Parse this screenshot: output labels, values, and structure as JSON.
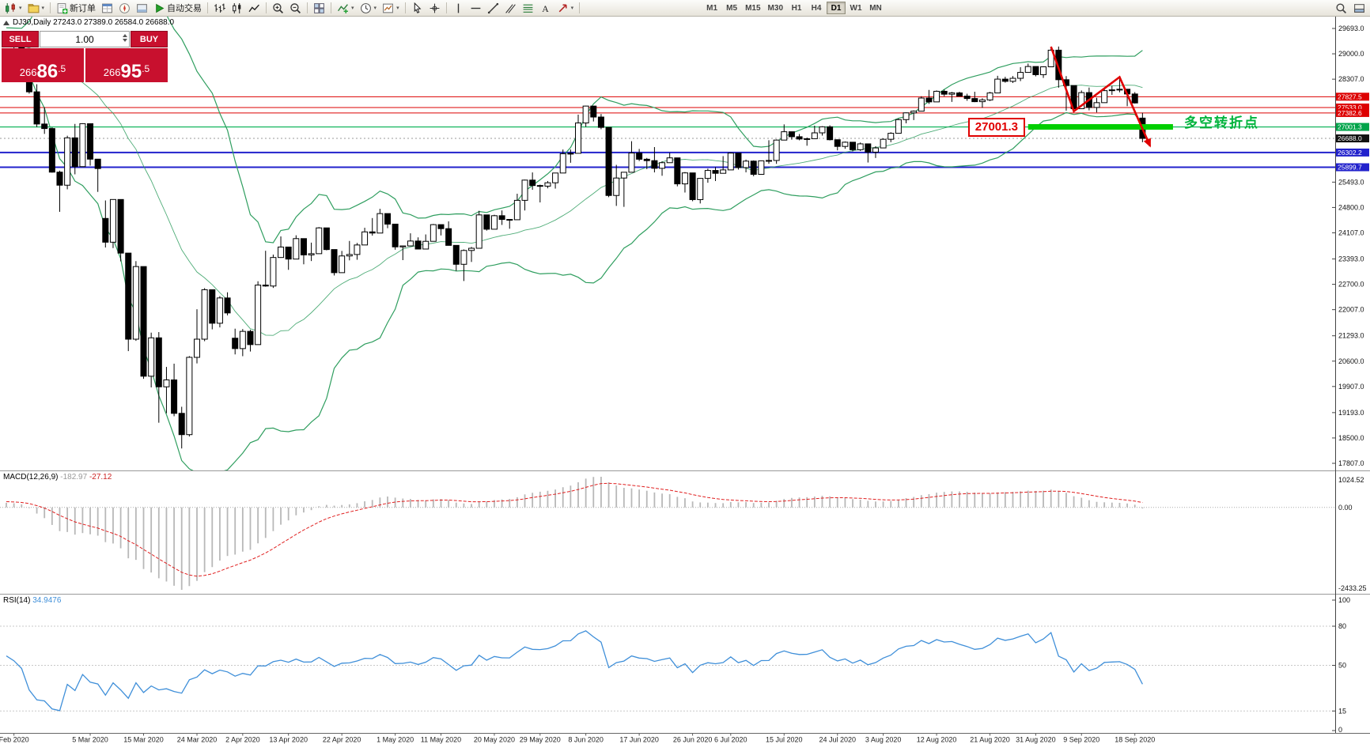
{
  "toolbar": {
    "items": [
      {
        "name": "new-chart",
        "dropdown": true
      },
      {
        "name": "profiles",
        "dropdown": true
      },
      {
        "sep": true
      },
      {
        "name": "new-order",
        "label": "新订单"
      },
      {
        "name": "market-watch"
      },
      {
        "name": "navigator"
      },
      {
        "name": "terminal"
      },
      {
        "name": "autotrading",
        "label": "自动交易"
      },
      {
        "sep": true
      },
      {
        "name": "bars-chart"
      },
      {
        "name": "candlestick-chart"
      },
      {
        "name": "line-chart"
      },
      {
        "sep": true
      },
      {
        "name": "zoom-in"
      },
      {
        "name": "zoom-out"
      },
      {
        "sep": true
      },
      {
        "name": "tile-windows"
      },
      {
        "sep": true
      },
      {
        "name": "indicators",
        "dropdown": true
      },
      {
        "name": "periods",
        "dropdown": true
      },
      {
        "name": "templates",
        "dropdown": true
      },
      {
        "sep": true
      },
      {
        "name": "cursor"
      },
      {
        "name": "crosshair"
      },
      {
        "sep": true
      },
      {
        "name": "vertical-line"
      },
      {
        "name": "horizontal-line"
      },
      {
        "name": "trendline"
      },
      {
        "name": "equidistant-channel"
      },
      {
        "name": "fibonacci"
      },
      {
        "name": "text-label"
      },
      {
        "name": "arrows",
        "dropdown": true
      },
      {
        "sep": true
      },
      {
        "gap": true
      }
    ],
    "timeframes": [
      {
        "label": "M1"
      },
      {
        "label": "M5"
      },
      {
        "label": "M15"
      },
      {
        "label": "M30"
      },
      {
        "label": "H1"
      },
      {
        "label": "H4"
      },
      {
        "label": "D1",
        "active": true
      },
      {
        "label": "W1"
      },
      {
        "label": "MN"
      }
    ],
    "right_items": [
      {
        "name": "search"
      },
      {
        "name": "toolbox-toggle"
      }
    ]
  },
  "trade_panel": {
    "sell_label": "SELL",
    "buy_label": "BUY",
    "volume": "1.00",
    "sell_price": "26686.5",
    "buy_price": "26695.5",
    "panel_color": "#c8102e"
  },
  "chart_data": {
    "type": "candlestick",
    "symbol": "DJ30",
    "timeframe": "Daily",
    "title_line": "DJ30,Daily 27243.0 27389.0 26584.0 26688.0",
    "ohlc_current": {
      "open": "27243.0",
      "high": "27389.0",
      "low": "26584.0",
      "close": "26688.0"
    },
    "current_price": 26688.0,
    "y_axis": {
      "min": 17807.0,
      "max": 29693.0,
      "labels": [
        "29693.0",
        "29000.0",
        "28307.0",
        "25493.0",
        "24800.0",
        "24107.0",
        "23393.0",
        "22700.0",
        "22007.0",
        "21293.0",
        "20600.0",
        "19907.0",
        "19193.0",
        "18500.0",
        "17807.0"
      ]
    },
    "x_ticks": [
      {
        "i": 1,
        "label": "Feb 2020"
      },
      {
        "i": 11,
        "label": "5 Mar 2020"
      },
      {
        "i": 18,
        "label": "15 Mar 2020"
      },
      {
        "i": 25,
        "label": "24 Mar 2020"
      },
      {
        "i": 31,
        "label": "2 Apr 2020"
      },
      {
        "i": 37,
        "label": "13 Apr 2020"
      },
      {
        "i": 44,
        "label": "22 Apr 2020"
      },
      {
        "i": 51,
        "label": "1 May 2020"
      },
      {
        "i": 57,
        "label": "11 May 2020"
      },
      {
        "i": 64,
        "label": "20 May 2020"
      },
      {
        "i": 70,
        "label": "29 May 2020"
      },
      {
        "i": 76,
        "label": "8 Jun 2020"
      },
      {
        "i": 83,
        "label": "17 Jun 2020"
      },
      {
        "i": 90,
        "label": "26 Jun 2020"
      },
      {
        "i": 95,
        "label": "6 Jul 2020"
      },
      {
        "i": 102,
        "label": "15 Jul 2020"
      },
      {
        "i": 109,
        "label": "24 Jul 2020"
      },
      {
        "i": 115,
        "label": "3 Aug 2020"
      },
      {
        "i": 122,
        "label": "12 Aug 2020"
      },
      {
        "i": 129,
        "label": "21 Aug 2020"
      },
      {
        "i": 135,
        "label": "31 Aug 2020"
      },
      {
        "i": 141,
        "label": "9 Sep 2020"
      },
      {
        "i": 148,
        "label": "18 Sep 2020"
      }
    ],
    "levels": [
      {
        "price": 27827.5,
        "label": "27827.5",
        "color": "#dd0000",
        "width": 1,
        "style": "solid",
        "label_bg": "#dd0000"
      },
      {
        "price": 27533.0,
        "label": "27533.0",
        "color": "#dd0000",
        "width": 1,
        "style": "solid",
        "label_bg": "#dd0000"
      },
      {
        "price": 27382.6,
        "label": "27382.6",
        "color": "#dd0000",
        "width": 1,
        "style": "solid",
        "label_bg": "#dd0000"
      },
      {
        "price": 27001.3,
        "label": "27001.3",
        "color": "#00b050",
        "width": 1.2,
        "style": "solid",
        "label_bg": "#00a44a"
      },
      {
        "price": 26688.0,
        "label": "26688.0",
        "color": "#9a9a9a",
        "width": 1,
        "style": "dotted",
        "label_bg": "#111111"
      },
      {
        "price": 26302.2,
        "label": "26302.2",
        "color": "#2121cc",
        "width": 2,
        "style": "solid",
        "label_bg": "#2121cc"
      },
      {
        "price": 25899.7,
        "label": "25899.7",
        "color": "#2121cc",
        "width": 2,
        "style": "solid",
        "label_bg": "#2121cc"
      }
    ],
    "style": {
      "candle_up_fill": "#ffffff",
      "candle_down_fill": "#000000",
      "candle_stroke": "#000000",
      "macd_bars": "#b8b8b8",
      "macd_signal": "#e02020",
      "rsi_line": "#3f8fd9"
    },
    "bollinger": {
      "period": 20,
      "deviations": 2,
      "color": "#2f9e5f"
    },
    "indicators": {
      "macd": {
        "label": "MACD(12,26,9)",
        "value_main": "-182.97",
        "value_signal": "-27.12",
        "axis": [
          "1024.52",
          "0.00",
          "-2433.25"
        ]
      },
      "rsi": {
        "label": "RSI(14)",
        "value": "34.9476",
        "axis": [
          "100",
          "80",
          "50",
          "15",
          "0"
        ],
        "levels": [
          80,
          50,
          15
        ]
      }
    },
    "annotations": {
      "callout_price": "27001.3",
      "note": "多空转折点",
      "zigzag": [
        {
          "i": 137,
          "price": 29193
        },
        {
          "i": 140,
          "price": 27430
        },
        {
          "i": 146,
          "price": 28364
        },
        {
          "i": 150,
          "price": 26480
        }
      ],
      "support_bar": {
        "price": 27001.3,
        "from_i": 134,
        "to_i": 153
      },
      "colors": {
        "zigzag": "#e00000",
        "support": "#00cf00",
        "note": "#00b33c",
        "callout": "#e00000"
      }
    },
    "seed_closes": [
      28132,
      28239,
      28376,
      28455,
      28515,
      28621,
      28538,
      28462,
      28645,
      28868,
      28745,
      28798,
      28956,
      29001,
      28855,
      28634,
      28703,
      28823,
      28939,
      29121,
      29196,
      29348,
      29303,
      28989,
      28722,
      28734,
      28807,
      29276,
      29551,
      29379,
      29398,
      29428,
      29551,
      29398,
      29232,
      29348,
      29219,
      29102,
      29348,
      29220
    ],
    "candles": [
      [
        29320,
        29409,
        29276,
        29348
      ],
      [
        29348,
        29368,
        29002,
        29220
      ],
      [
        29220,
        29227,
        28892,
        28992
      ],
      [
        28402,
        28402,
        27912,
        27961
      ],
      [
        27961,
        28169,
        26998,
        27081
      ],
      [
        27081,
        27542,
        26811,
        26957
      ],
      [
        26957,
        26990,
        25752,
        25766
      ],
      [
        25766,
        25806,
        24681,
        25409
      ],
      [
        25409,
        26761,
        25296,
        26703
      ],
      [
        26703,
        27084,
        25706,
        25917
      ],
      [
        25917,
        27102,
        25916,
        27090
      ],
      [
        27090,
        27090,
        25943,
        26121
      ],
      [
        26121,
        26121,
        25226,
        25864
      ],
      [
        24500,
        24992,
        23706,
        23851
      ],
      [
        23851,
        25020,
        23690,
        25018
      ],
      [
        25018,
        25020,
        23328,
        23553
      ],
      [
        23553,
        23553,
        20874,
        21200
      ],
      [
        21200,
        23333,
        21154,
        23185
      ],
      [
        23185,
        23185,
        20116,
        20188
      ],
      [
        20188,
        21379,
        19882,
        21237
      ],
      [
        21237,
        21394,
        18917,
        19898
      ],
      [
        19898,
        20442,
        19177,
        20087
      ],
      [
        20087,
        20531,
        19094,
        19173
      ],
      [
        19173,
        19353,
        18213,
        18591
      ],
      [
        18591,
        20737,
        18540,
        20704
      ],
      [
        20704,
        22019,
        20538,
        21200
      ],
      [
        21200,
        22595,
        21145,
        22552
      ],
      [
        22552,
        22552,
        21469,
        21636
      ],
      [
        21636,
        22378,
        21522,
        22327
      ],
      [
        22327,
        22482,
        21852,
        21917
      ],
      [
        21227,
        21487,
        20784,
        20943
      ],
      [
        20943,
        21477,
        20735,
        21413
      ],
      [
        21413,
        21457,
        20863,
        21052
      ],
      [
        21052,
        22783,
        21052,
        22679
      ],
      [
        22679,
        23617,
        22634,
        22653
      ],
      [
        22653,
        23513,
        22601,
        23433
      ],
      [
        23433,
        24009,
        23423,
        23719
      ],
      [
        23719,
        23719,
        23096,
        23390
      ],
      [
        23390,
        24040,
        23390,
        23949
      ],
      [
        23949,
        23949,
        23247,
        23504
      ],
      [
        23504,
        23839,
        23336,
        23537
      ],
      [
        23537,
        24264,
        23537,
        24242
      ],
      [
        24242,
        24242,
        23628,
        23650
      ],
      [
        23650,
        23650,
        22941,
        23018
      ],
      [
        23018,
        23613,
        23018,
        23475
      ],
      [
        23475,
        23885,
        23355,
        23515
      ],
      [
        23515,
        23831,
        23371,
        23775
      ],
      [
        23775,
        24246,
        23775,
        24133
      ],
      [
        24133,
        24511,
        24032,
        24101
      ],
      [
        24101,
        24764,
        24101,
        24633
      ],
      [
        24633,
        24633,
        24234,
        24345
      ],
      [
        24345,
        24345,
        23645,
        23723
      ],
      [
        23723,
        23759,
        23361,
        23749
      ],
      [
        23749,
        24094,
        23749,
        23883
      ],
      [
        23883,
        23983,
        23664,
        23664
      ],
      [
        23664,
        24063,
        23664,
        23875
      ],
      [
        23875,
        24349,
        23875,
        24331
      ],
      [
        24331,
        24331,
        24036,
        24221
      ],
      [
        24221,
        24421,
        23764,
        23764
      ],
      [
        23764,
        23764,
        23067,
        23247
      ],
      [
        23247,
        23653,
        22790,
        23625
      ],
      [
        23625,
        23722,
        23311,
        23685
      ],
      [
        23685,
        24709,
        23685,
        24597
      ],
      [
        24597,
        24597,
        24168,
        24206
      ],
      [
        24206,
        24601,
        24206,
        24575
      ],
      [
        24575,
        24719,
        24323,
        24474
      ],
      [
        24474,
        24482,
        24219,
        24465
      ],
      [
        24465,
        25176,
        24465,
        24995
      ],
      [
        24995,
        25560,
        24718,
        25548
      ],
      [
        25548,
        25758,
        25283,
        25400
      ],
      [
        25400,
        25424,
        24938,
        25383
      ],
      [
        25383,
        25523,
        25324,
        25475
      ],
      [
        25475,
        25743,
        25316,
        25742
      ],
      [
        25742,
        26384,
        25742,
        26269
      ],
      [
        26269,
        26385,
        26022,
        26281
      ],
      [
        26281,
        27338,
        26281,
        27110
      ],
      [
        27110,
        27580,
        27003,
        27572
      ],
      [
        27572,
        27572,
        27151,
        27272
      ],
      [
        27272,
        27355,
        26938,
        26989
      ],
      [
        26989,
        26989,
        25082,
        25128
      ],
      [
        25128,
        25965,
        24843,
        25605
      ],
      [
        25605,
        25763,
        24817,
        25763
      ],
      [
        25763,
        26611,
        25763,
        26289
      ],
      [
        26289,
        26400,
        26068,
        26119
      ],
      [
        26119,
        26154,
        25848,
        26080
      ],
      [
        26080,
        26451,
        25759,
        25871
      ],
      [
        25871,
        26059,
        25667,
        26024
      ],
      [
        26024,
        26298,
        26024,
        26156
      ],
      [
        26156,
        26156,
        25378,
        25445
      ],
      [
        25445,
        25769,
        25209,
        25745
      ],
      [
        25745,
        25745,
        24971,
        25015
      ],
      [
        25015,
        25601,
        24910,
        25595
      ],
      [
        25595,
        25860,
        25476,
        25812
      ],
      [
        25812,
        25905,
        25523,
        25734
      ],
      [
        25734,
        26204,
        25727,
        25827
      ],
      [
        25827,
        26306,
        25827,
        26287
      ],
      [
        26287,
        26287,
        25836,
        25890
      ],
      [
        25890,
        26109,
        25760,
        26067
      ],
      [
        26067,
        26087,
        25653,
        25706
      ],
      [
        25706,
        26086,
        25706,
        26075
      ],
      [
        26075,
        26639,
        25996,
        26085
      ],
      [
        26085,
        26659,
        25994,
        26642
      ],
      [
        26642,
        27071,
        26642,
        26870
      ],
      [
        26870,
        26870,
        26653,
        26734
      ],
      [
        26734,
        26808,
        26636,
        26671
      ],
      [
        26671,
        26711,
        26488,
        26680
      ],
      [
        26680,
        27036,
        26680,
        26840
      ],
      [
        26840,
        27021,
        26765,
        27005
      ],
      [
        27005,
        27046,
        26633,
        26652
      ],
      [
        26652,
        26652,
        26361,
        26469
      ],
      [
        26469,
        26604,
        26404,
        26584
      ],
      [
        26584,
        26584,
        26333,
        26379
      ],
      [
        26379,
        26576,
        26346,
        26539
      ],
      [
        26539,
        26539,
        26029,
        26313
      ],
      [
        26313,
        26474,
        26153,
        26428
      ],
      [
        26428,
        26687,
        26428,
        26664
      ],
      [
        26664,
        26856,
        26585,
        26828
      ],
      [
        26828,
        27230,
        26828,
        27201
      ],
      [
        27201,
        27397,
        27101,
        27386
      ],
      [
        27386,
        27453,
        27189,
        27433
      ],
      [
        27433,
        27839,
        27433,
        27791
      ],
      [
        27791,
        28013,
        27631,
        27686
      ],
      [
        27686,
        27999,
        27686,
        27976
      ],
      [
        27976,
        28020,
        27840,
        27896
      ],
      [
        27896,
        27959,
        27686,
        27931
      ],
      [
        27931,
        27963,
        27844,
        27844
      ],
      [
        27844,
        27909,
        27716,
        27778
      ],
      [
        27778,
        27963,
        27679,
        27692
      ],
      [
        27692,
        27786,
        27525,
        27739
      ],
      [
        27739,
        27959,
        27710,
        27930
      ],
      [
        27930,
        28399,
        27930,
        28308
      ],
      [
        28308,
        28371,
        28212,
        28248
      ],
      [
        28248,
        28392,
        28203,
        28331
      ],
      [
        28331,
        28634,
        28254,
        28492
      ],
      [
        28492,
        28733,
        28492,
        28653
      ],
      [
        28653,
        28654,
        28384,
        28430
      ],
      [
        28430,
        28659,
        28341,
        28645
      ],
      [
        28645,
        29193,
        28645,
        29100
      ],
      [
        29100,
        29199,
        28074,
        28292
      ],
      [
        28292,
        28391,
        27447,
        28133
      ],
      [
        28133,
        28133,
        27448,
        27500
      ],
      [
        27500,
        27999,
        27500,
        27940
      ],
      [
        27940,
        28078,
        27455,
        27534
      ],
      [
        27534,
        27798,
        27398,
        27665
      ],
      [
        27665,
        28047,
        27665,
        27993
      ],
      [
        27993,
        28126,
        27878,
        28015
      ],
      [
        28015,
        28364,
        27948,
        28032
      ],
      [
        28032,
        28032,
        27569,
        27902
      ],
      [
        27902,
        27953,
        27641,
        27657
      ],
      [
        27243,
        27389,
        26584,
        26688
      ]
    ]
  }
}
